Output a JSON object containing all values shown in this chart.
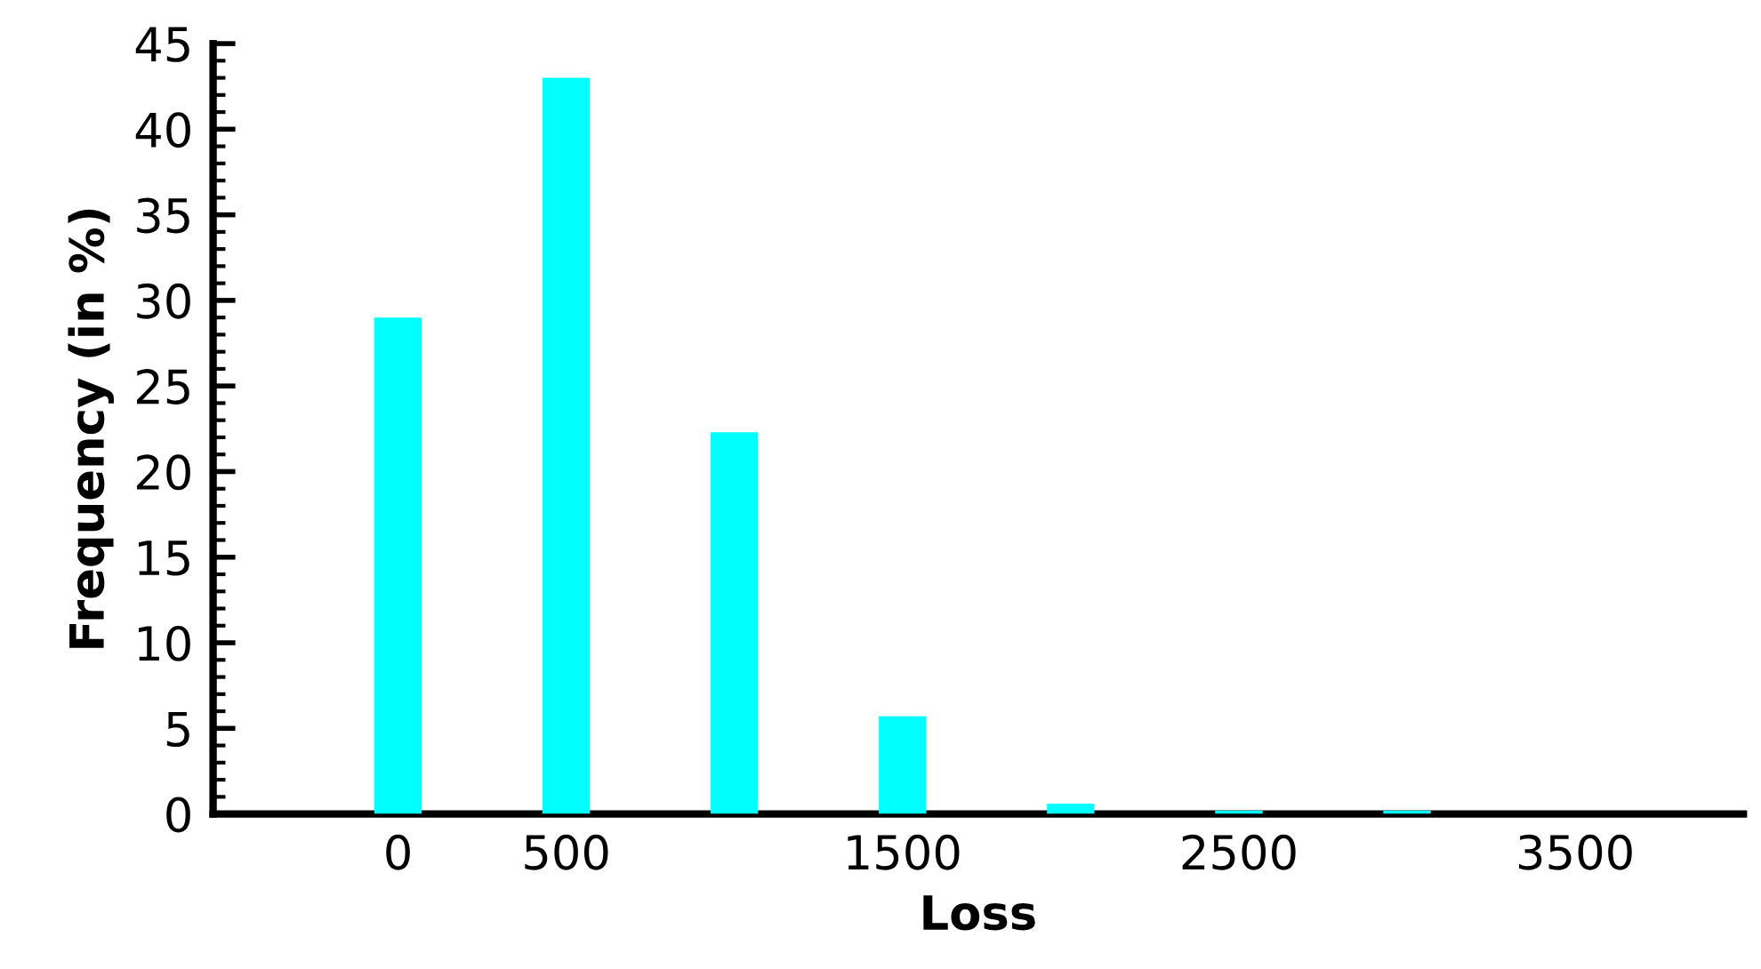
{
  "chart_data": {
    "type": "bar",
    "xlabel": "Loss",
    "ylabel": "Frequency (in %)",
    "x": [
      0,
      500,
      1000,
      1500,
      2000,
      2500,
      3000
    ],
    "values": [
      29,
      43,
      22.3,
      5.7,
      0.6,
      0.2,
      0.2
    ],
    "color": "#00ffff",
    "xlim": [
      -550,
      4000
    ],
    "xticks": [
      0,
      500,
      1500,
      2500,
      3500
    ],
    "ylim": [
      0,
      45
    ],
    "yticks": [
      0,
      5,
      10,
      15,
      20,
      25,
      30,
      35,
      40,
      45
    ],
    "grid": false,
    "legend": false
  }
}
